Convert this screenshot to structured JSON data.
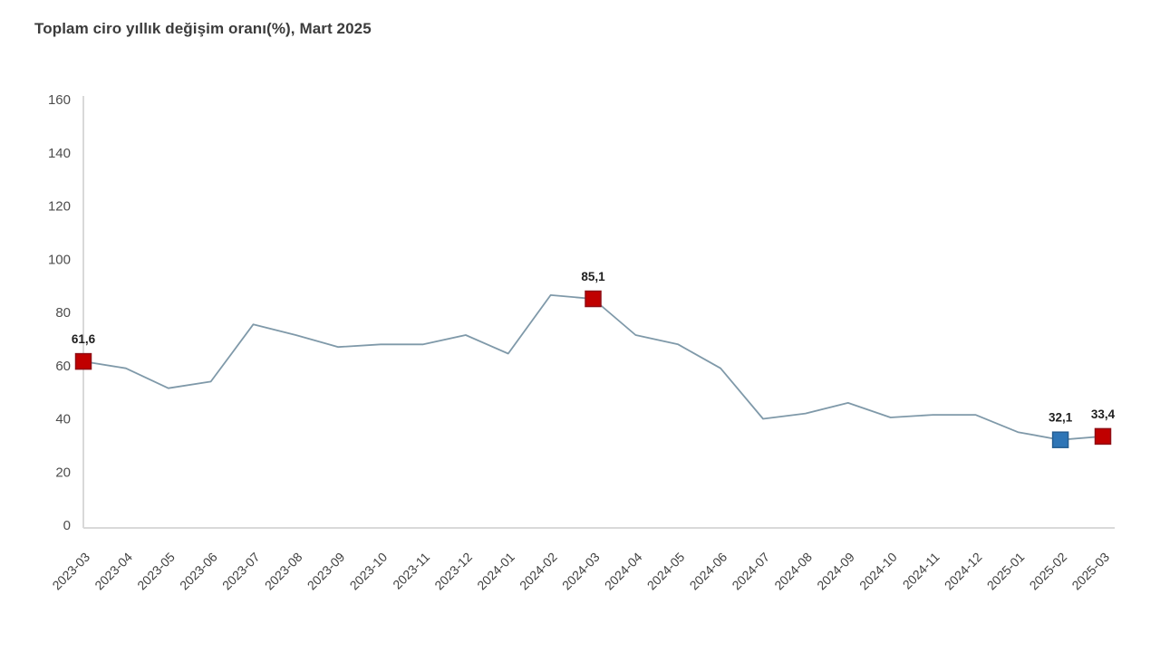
{
  "header": {
    "title": "Toplam ciro yıllık değişim oranı(%), Mart 2025"
  },
  "chart_data": {
    "type": "line",
    "title": "Toplam ciro yıllık değişim oranı(%), Mart 2025",
    "categories": [
      "2023-03",
      "2023-04",
      "2023-05",
      "2023-06",
      "2023-07",
      "2023-08",
      "2023-09",
      "2023-10",
      "2023-11",
      "2023-12",
      "2024-01",
      "2024-02",
      "2024-03",
      "2024-04",
      "2024-05",
      "2024-06",
      "2024-07",
      "2024-08",
      "2024-09",
      "2024-10",
      "2024-11",
      "2024-12",
      "2025-01",
      "2025-02",
      "2025-03"
    ],
    "series": [
      {
        "name": "Toplam ciro yıllık değişim oranı (%)",
        "values": [
          61.6,
          59.0,
          51.5,
          54.0,
          75.5,
          71.5,
          67.0,
          68.0,
          68.0,
          71.5,
          64.5,
          86.5,
          85.1,
          71.5,
          68.0,
          59.0,
          40.0,
          42.0,
          46.0,
          40.5,
          41.5,
          41.5,
          35.0,
          32.1,
          33.4
        ]
      }
    ],
    "xlabel": "",
    "ylabel": "",
    "ylim": [
      0,
      160
    ],
    "ytick_step": 20,
    "grid": false,
    "legend_position": "none",
    "line_color": "#7f99a9",
    "axis_color": "#d9d9d9",
    "highlighted_points": [
      {
        "category": "2023-03",
        "value": 61.6,
        "label": "61,6",
        "marker_color": "#c00000",
        "marker_border": "#8f0e15"
      },
      {
        "category": "2024-03",
        "value": 85.1,
        "label": "85,1",
        "marker_color": "#c00000",
        "marker_border": "#8f0e15"
      },
      {
        "category": "2025-02",
        "value": 32.1,
        "label": "32,1",
        "marker_color": "#2e75b6",
        "marker_border": "#255e92"
      },
      {
        "category": "2025-03",
        "value": 33.4,
        "label": "33,4",
        "marker_color": "#c00000",
        "marker_border": "#8f0e15"
      }
    ]
  }
}
